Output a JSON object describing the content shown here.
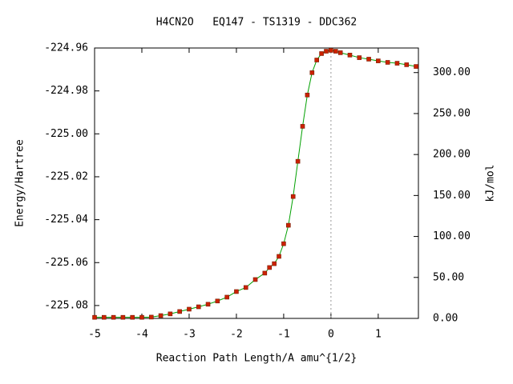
{
  "chart_data": {
    "type": "line",
    "title": "H4CN2O   EQ147 - TS1319 - DDC362",
    "xlabel": "Reaction Path Length/A amu^{1/2}",
    "ylabel": "Energy/Hartree",
    "y2label": "kJ/mol",
    "x": [
      -5,
      -4.8,
      -4.6,
      -4.4,
      -4.2,
      -4.0,
      -3.8,
      -3.6,
      -3.4,
      -3.2,
      -3.0,
      -2.8,
      -2.6,
      -2.4,
      -2.2,
      -2.0,
      -1.8,
      -1.6,
      -1.4,
      -1.3,
      -1.2,
      -1.1,
      -1.0,
      -0.9,
      -0.8,
      -0.7,
      -0.6,
      -0.5,
      -0.4,
      -0.3,
      -0.2,
      -0.1,
      0,
      0.1,
      0.2,
      0.4,
      0.6,
      0.8,
      1.0,
      1.2,
      1.4,
      1.6,
      1.8
    ],
    "series": [
      {
        "name": "Energy",
        "color": "#00a000",
        "marker_color": "#cc2200",
        "values": [
          -225.0855,
          -225.0855,
          -225.0855,
          -225.0855,
          -225.0855,
          -225.0855,
          -225.0854,
          -225.0847,
          -225.0839,
          -225.0828,
          -225.0817,
          -225.0806,
          -225.0794,
          -225.0779,
          -225.0761,
          -225.0735,
          -225.0716,
          -225.0679,
          -225.0649,
          -225.0623,
          -225.0605,
          -225.0571,
          -225.0512,
          -225.0426,
          -225.0292,
          -225.0128,
          -224.9965,
          -224.9819,
          -224.9715,
          -224.9656,
          -224.9626,
          -224.9615,
          -224.9611,
          -224.9615,
          -224.9622,
          -224.9633,
          -224.9645,
          -224.9652,
          -224.966,
          -224.9667,
          -224.9671,
          -224.9678,
          -224.9686
        ]
      }
    ],
    "xlim": [
      -5,
      1.85
    ],
    "xticks": [
      -5,
      -4,
      -3,
      -2,
      -1,
      0,
      1
    ],
    "ylim": [
      -225.086,
      -224.96
    ],
    "yticks": [
      -225.08,
      -225.06,
      -225.04,
      -225.02,
      {
        "value": -225.0,
        "label": "-225.00"
      },
      -224.98,
      -224.96
    ],
    "y2lim": [
      0,
      330
    ],
    "y2ticks": [
      {
        "value": 0,
        "label": "0.00"
      },
      {
        "value": 50,
        "label": "50.00"
      },
      {
        "value": 100,
        "label": "100.00"
      },
      {
        "value": 150,
        "label": "150.00"
      },
      {
        "value": 200,
        "label": "200.00"
      },
      {
        "value": 250,
        "label": "250.00"
      },
      {
        "value": 300,
        "label": "300.00"
      }
    ]
  }
}
